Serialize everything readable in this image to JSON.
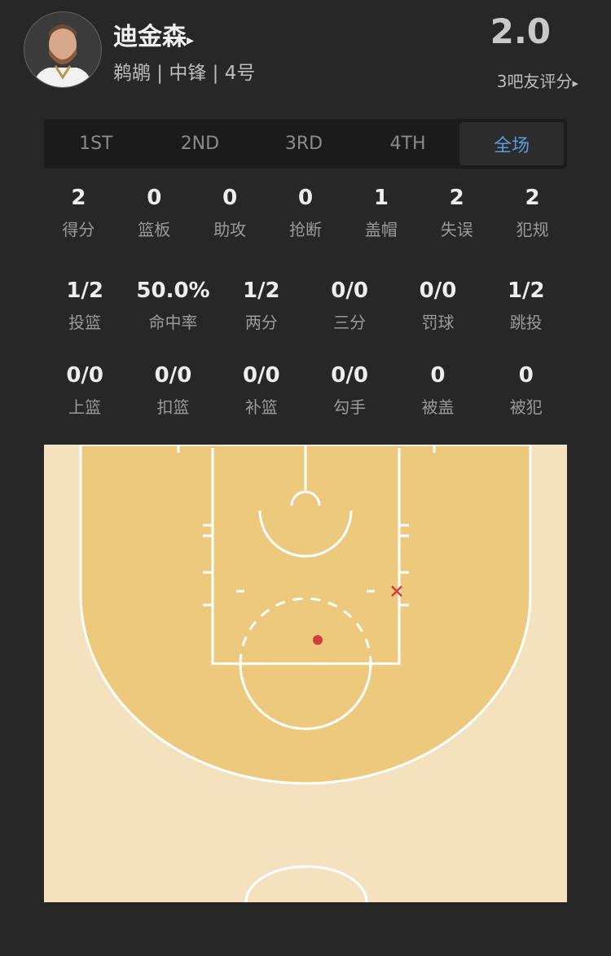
{
  "player": {
    "name": "迪金森",
    "arrow": "▸",
    "info": "鹈鹕 | 中锋 | 4号",
    "rating": "2.0",
    "raters": "3吧友评分",
    "raters_arrow": "▸"
  },
  "tabs": [
    {
      "label": "1ST"
    },
    {
      "label": "2ND"
    },
    {
      "label": "3RD"
    },
    {
      "label": "4TH"
    },
    {
      "label": "全场",
      "active": true
    }
  ],
  "stats_main": [
    {
      "value": "2",
      "label": "得分"
    },
    {
      "value": "0",
      "label": "篮板"
    },
    {
      "value": "0",
      "label": "助攻"
    },
    {
      "value": "0",
      "label": "抢断"
    },
    {
      "value": "1",
      "label": "盖帽"
    },
    {
      "value": "2",
      "label": "失误"
    },
    {
      "value": "2",
      "label": "犯规"
    }
  ],
  "stats_shoot": [
    {
      "value": "1/2",
      "label": "投篮"
    },
    {
      "value": "50.0%",
      "label": "命中率"
    },
    {
      "value": "1/2",
      "label": "两分"
    },
    {
      "value": "0/0",
      "label": "三分"
    },
    {
      "value": "0/0",
      "label": "罚球"
    },
    {
      "value": "1/2",
      "label": "跳投"
    }
  ],
  "stats_type": [
    {
      "value": "0/0",
      "label": "上篮"
    },
    {
      "value": "0/0",
      "label": "扣篮"
    },
    {
      "value": "0/0",
      "label": "补篮"
    },
    {
      "value": "0/0",
      "label": "勾手"
    },
    {
      "value": "0",
      "label": "被盖"
    },
    {
      "value": "0",
      "label": "被犯"
    }
  ],
  "court": {
    "colors": {
      "paint": "#EDC97D",
      "outside": "#F4E2BF",
      "made": "#D63C3C",
      "missed": "#D63C3C"
    },
    "shots": [
      {
        "result": "made"
      },
      {
        "result": "missed"
      }
    ]
  },
  "accent": "#5B9BE0"
}
